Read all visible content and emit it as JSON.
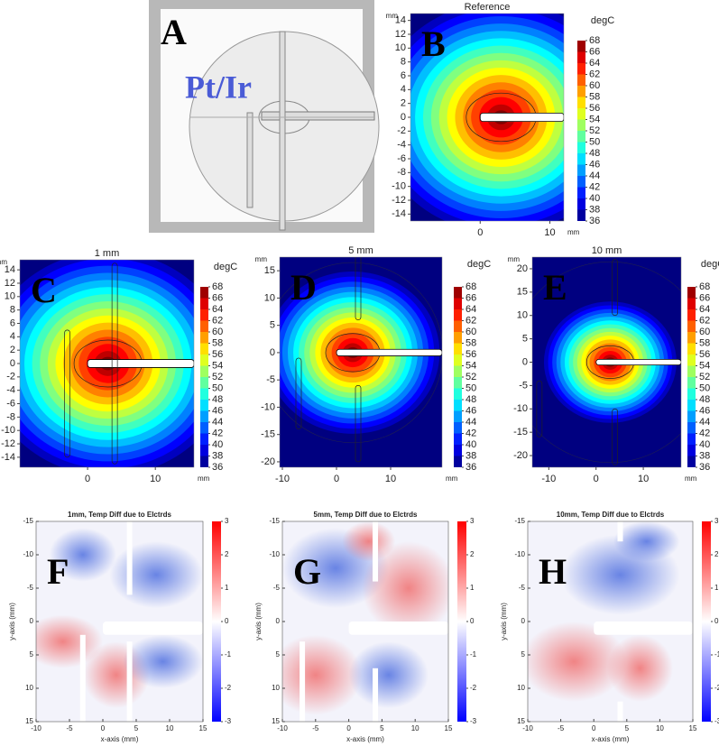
{
  "panel_a": {
    "letter": "A",
    "label": "Pt/Ir"
  },
  "contour_maps": [
    {
      "letter": "B",
      "title": "Reference",
      "y_unit": "mm",
      "x_unit": "mm",
      "colorbar_title": "degC",
      "xlim": [
        -10,
        12
      ],
      "xticks": [
        0,
        10
      ],
      "ylim": [
        -15,
        15
      ],
      "yticks": [
        14,
        12,
        10,
        8,
        6,
        4,
        2,
        0,
        -2,
        -4,
        -6,
        -8,
        -10,
        -12,
        -14
      ],
      "clim": [
        36,
        68
      ],
      "cticks": [
        36,
        38,
        40,
        42,
        44,
        46,
        48,
        50,
        52,
        54,
        56,
        58,
        60,
        62,
        64,
        66,
        68
      ]
    },
    {
      "letter": "C",
      "title": "1 mm",
      "y_unit": "mm",
      "x_unit": "mm",
      "colorbar_title": "degC",
      "xlim": [
        -10,
        15.7
      ],
      "xticks": [
        0,
        10
      ],
      "ylim": [
        -15.5,
        15.5
      ],
      "yticks": [
        14,
        12,
        10,
        8,
        6,
        4,
        2,
        0,
        -2,
        -4,
        -6,
        -8,
        -10,
        -12,
        -14
      ],
      "clim": [
        36,
        68
      ],
      "cticks": [
        36,
        38,
        40,
        42,
        44,
        46,
        48,
        50,
        52,
        54,
        56,
        58,
        60,
        62,
        64,
        66,
        68
      ]
    },
    {
      "letter": "D",
      "title": "5 mm",
      "y_unit": "mm",
      "x_unit": "mm",
      "colorbar_title": "degC",
      "xlim": [
        -10.5,
        19.5
      ],
      "xticks": [
        -10,
        0,
        10
      ],
      "ylim": [
        -21,
        17.5
      ],
      "yticks": [
        15,
        10,
        5,
        0,
        -5,
        -10,
        -15,
        -20
      ],
      "clim": [
        36,
        68
      ],
      "cticks": [
        36,
        38,
        40,
        42,
        44,
        46,
        48,
        50,
        52,
        54,
        56,
        58,
        60,
        62,
        64,
        66,
        68
      ]
    },
    {
      "letter": "E",
      "title": "10 mm",
      "y_unit": "mm",
      "x_unit": "mm",
      "colorbar_title": "degC",
      "xlim": [
        -13.5,
        18
      ],
      "xticks": [
        -10,
        0,
        10
      ],
      "ylim": [
        -22.5,
        22.5
      ],
      "yticks": [
        20,
        15,
        10,
        5,
        0,
        -5,
        -10,
        -15,
        -20
      ],
      "clim": [
        36,
        68
      ],
      "cticks": [
        36,
        38,
        40,
        42,
        44,
        46,
        48,
        50,
        52,
        54,
        56,
        58,
        60,
        62,
        64,
        66,
        68
      ]
    }
  ],
  "difference_maps": [
    {
      "letter": "F",
      "title": "1mm, Temp Diff due to Elctrds",
      "xlabel": "x-axis (mm)",
      "ylabel": "y-axis (mm)",
      "xlim": [
        -10,
        15
      ],
      "xticks": [
        -10,
        -5,
        0,
        5,
        10,
        15
      ],
      "ylim": [
        -15,
        15
      ],
      "yticks": [
        -15,
        -10,
        -5,
        0,
        5,
        10,
        15
      ],
      "clim": [
        -3,
        3
      ],
      "cticks": [
        -3,
        -2,
        -1,
        0,
        1,
        2,
        3
      ]
    },
    {
      "letter": "G",
      "title": "5mm, Temp Diff due to Elctrds",
      "xlabel": "x-axis (mm)",
      "ylabel": "y-axis (mm)",
      "xlim": [
        -10,
        15
      ],
      "xticks": [
        -10,
        -5,
        0,
        5,
        10,
        15
      ],
      "ylim": [
        -15,
        15
      ],
      "yticks": [
        -15,
        -10,
        -5,
        0,
        5,
        10,
        15
      ],
      "clim": [
        -3,
        3
      ],
      "cticks": [
        -3,
        -2,
        -1,
        0,
        1,
        2,
        3
      ]
    },
    {
      "letter": "H",
      "title": "10mm, Temp Diff due to Elctrds",
      "xlabel": "x-axis (mm)",
      "ylabel": "y-axis (mm)",
      "xlim": [
        -10,
        15
      ],
      "xticks": [
        -10,
        -5,
        0,
        5,
        10,
        15
      ],
      "ylim": [
        -15,
        15
      ],
      "yticks": [
        -15,
        -10,
        -5,
        0,
        5,
        10,
        15
      ],
      "clim": [
        -3,
        3
      ],
      "cticks": [
        -3,
        -2,
        -1,
        0,
        1,
        2,
        3
      ]
    }
  ]
}
